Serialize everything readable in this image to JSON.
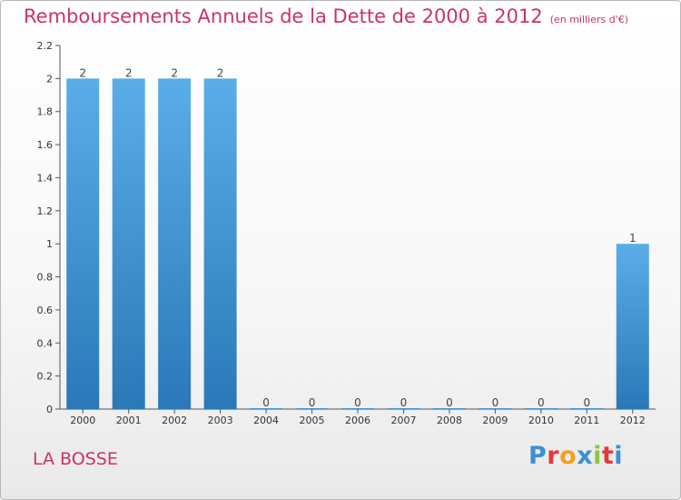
{
  "header": {
    "title": "Remboursements Annuels de la Dette de 2000 à 2012",
    "subtitle": "(en milliers d'€)"
  },
  "footer": {
    "commune": "LA BOSSE",
    "logo_letters": [
      "P",
      "r",
      "o",
      "x",
      "i",
      "t",
      "i"
    ],
    "logo_colors": [
      "#3b8fd6",
      "#e2383a",
      "#f2a21c",
      "#3b8fd6",
      "#8cc63f",
      "#e2383a",
      "#3b8fd6"
    ]
  },
  "chart_data": {
    "type": "bar",
    "categories": [
      "2000",
      "2001",
      "2002",
      "2003",
      "2004",
      "2005",
      "2006",
      "2007",
      "2008",
      "2009",
      "2010",
      "2011",
      "2012"
    ],
    "values": [
      2,
      2,
      2,
      2,
      0,
      0,
      0,
      0,
      0,
      0,
      0,
      0,
      1
    ],
    "data_labels": [
      "2",
      "2",
      "2",
      "2",
      "0",
      "0",
      "0",
      "0",
      "0",
      "0",
      "0",
      "0",
      "1"
    ],
    "title": "Remboursements Annuels de la Dette de 2000 à 2012",
    "subtitle": "(en milliers d'€)",
    "xlabel": "",
    "ylabel": "",
    "ylim": [
      0,
      2.2
    ],
    "yticks": [
      0,
      0.2,
      0.4,
      0.6,
      0.8,
      1,
      1.2,
      1.4,
      1.6,
      1.8,
      2,
      2.2
    ],
    "ytick_labels": [
      "0",
      "0.2",
      "0.4",
      "0.6",
      "0.8",
      "1",
      "1.2",
      "1.4",
      "1.6",
      "1.8",
      "2",
      "2.2"
    ],
    "grid": false,
    "bar_color_top": "#5aaee8",
    "bar_color_bottom": "#2a78b8"
  }
}
